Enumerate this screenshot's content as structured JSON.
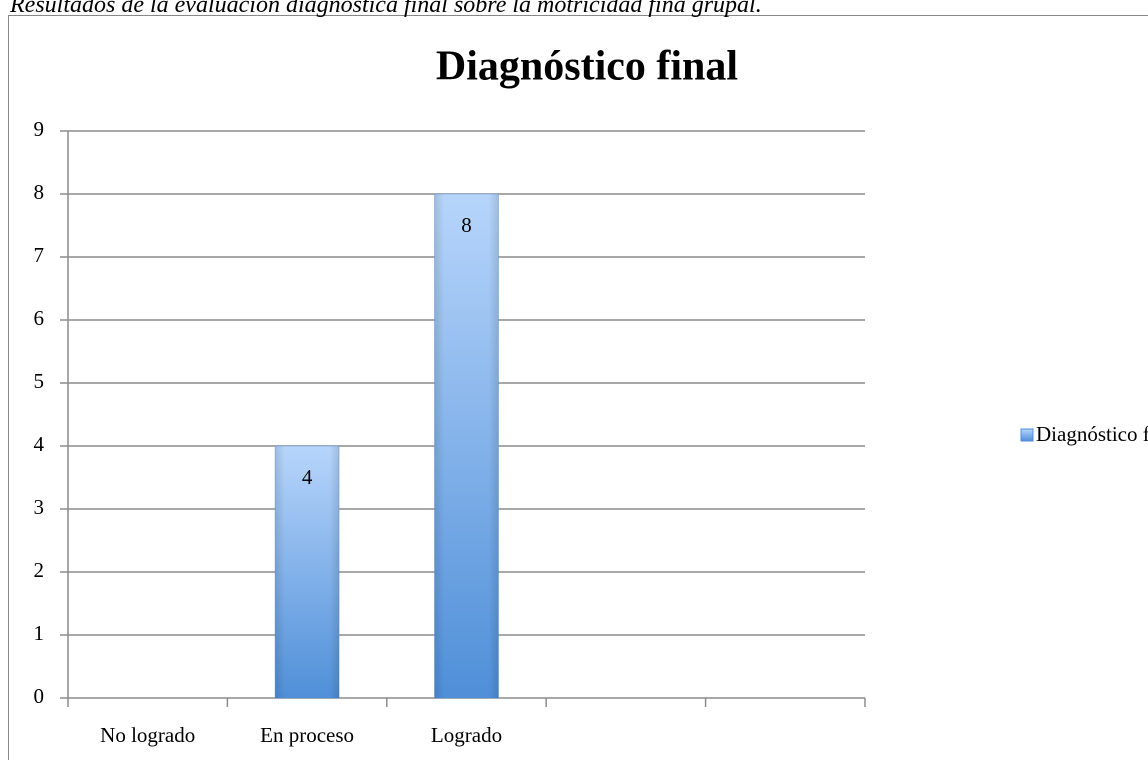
{
  "caption": "Resultados de la evaluación diagnóstica final sobre la motricidad fina grupal.",
  "chart_data": {
    "type": "bar",
    "title": "Diagnóstico final",
    "categories": [
      "No logrado",
      "En proceso",
      "Logrado",
      null,
      null
    ],
    "series": [
      {
        "name": "Diagnóstico final",
        "color": "#4f8fd8",
        "values": [
          null,
          4,
          8,
          null,
          null
        ]
      }
    ],
    "ylim": [
      0,
      9
    ],
    "yticks": [
      0,
      1,
      2,
      3,
      4,
      5,
      6,
      7,
      8,
      9
    ],
    "grid": true,
    "legend": "right"
  }
}
